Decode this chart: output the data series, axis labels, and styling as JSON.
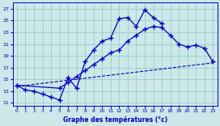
{
  "xlabel": "Graphe des températures (°c)",
  "bg_color": "#cce8e8",
  "grid_color": "#99cccc",
  "line_color": "#0000bb",
  "xlim": [
    -0.5,
    23.5
  ],
  "ylim": [
    10.5,
    28.0
  ],
  "xticks": [
    0,
    1,
    2,
    3,
    4,
    5,
    6,
    7,
    8,
    9,
    10,
    11,
    12,
    13,
    14,
    15,
    16,
    17,
    18,
    19,
    20,
    21,
    22,
    23
  ],
  "yticks": [
    11,
    13,
    15,
    17,
    19,
    21,
    23,
    25,
    27
  ],
  "series1_x": [
    0,
    1,
    2,
    3,
    4,
    5,
    6,
    7,
    8,
    9,
    10,
    11,
    12,
    13,
    14,
    15,
    16,
    17
  ],
  "series1_y": [
    14,
    13.2,
    13.0,
    12.5,
    12.0,
    11.5,
    15.3,
    13.5,
    18.0,
    20.0,
    21.5,
    22.0,
    25.3,
    25.5,
    24.0,
    26.8,
    25.5,
    24.5
  ],
  "series2_x": [
    0,
    23
  ],
  "series2_y": [
    13.8,
    17.8
  ],
  "series3_x": [
    0,
    5,
    6,
    7,
    8,
    9,
    10,
    11,
    12,
    13,
    14,
    15,
    16,
    17,
    18,
    19,
    20,
    21,
    22,
    23
  ],
  "series3_y": [
    14,
    13.5,
    14.5,
    15.5,
    16.5,
    17.5,
    18.5,
    19.5,
    20.0,
    21.5,
    22.5,
    23.5,
    24.0,
    23.8,
    22.5,
    21.0,
    20.5,
    20.8,
    20.3,
    18.0
  ]
}
